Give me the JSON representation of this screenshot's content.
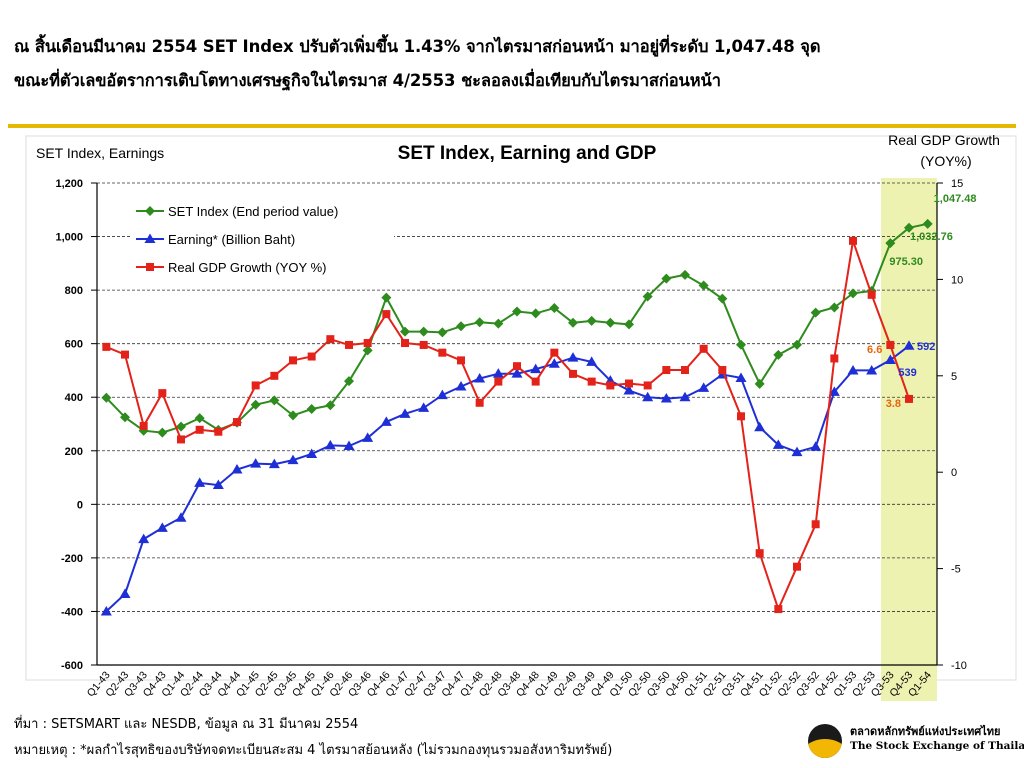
{
  "headline": {
    "line1": "ณ สิ้นเดือนมีนาคม 2554 SET Index ปรับตัวเพิ่มขึ้น 1.43% จากไตรมาสก่อนหน้า มาอยู่ที่ระดับ 1,047.48 จุด",
    "line2": "ขณะที่ตัวเลขอัตราการเติบโตทางเศรษฐกิจในไตรมาส 4/2553 ชะลอลงเมื่อเทียบกับไตรมาสก่อนหน้า"
  },
  "colors": {
    "set": "#2e8b1e",
    "earning": "#1f2fd6",
    "gdp": "#e32219",
    "highlight": "#eef2b0",
    "rule": "#e6b800"
  },
  "chart_data": {
    "type": "line",
    "title": "SET Index, Earning and GDP",
    "ylabel_left": "SET Index, Earnings",
    "ylabel_right": "Real GDP Growth (YOY%)",
    "ylim_left": [
      -600,
      1200
    ],
    "yticks_left": [
      "1,200",
      "1,000",
      "800",
      "600",
      "400",
      "200",
      "0",
      "-200",
      "-400",
      "-600"
    ],
    "ylim_right": [
      -10,
      15
    ],
    "yticks_right": [
      "15",
      "10",
      "5",
      "0",
      "-5",
      "-10"
    ],
    "grid": "horizontal dashed",
    "legend_position": "top-left",
    "categories": [
      "Q1-43",
      "Q2-43",
      "Q3-43",
      "Q4-43",
      "Q1-44",
      "Q2-44",
      "Q3-44",
      "Q4-44",
      "Q1-45",
      "Q2-45",
      "Q3-45",
      "Q4-45",
      "Q1-46",
      "Q2-46",
      "Q3-46",
      "Q4-46",
      "Q1-47",
      "Q2-47",
      "Q3-47",
      "Q4-47",
      "Q1-48",
      "Q2-48",
      "Q3-48",
      "Q4-48",
      "Q1-49",
      "Q2-49",
      "Q3-49",
      "Q4-49",
      "Q1-50",
      "Q2-50",
      "Q3-50",
      "Q4-50",
      "Q1-51",
      "Q2-51",
      "Q3-51",
      "Q4-51",
      "Q1-52",
      "Q2-52",
      "Q3-52",
      "Q4-52",
      "Q1-53",
      "Q2-53",
      "Q3-53",
      "Q4-53",
      "Q1-54"
    ],
    "series": [
      {
        "name": "SET Index (End period value)",
        "axis": "left",
        "marker": "diamond",
        "values": [
          398,
          325,
          275,
          268,
          290,
          322,
          278,
          305,
          372,
          388,
          332,
          356,
          370,
          460,
          575,
          772,
          645,
          645,
          642,
          665,
          680,
          675,
          720,
          713,
          733,
          678,
          685,
          678,
          672,
          776,
          843,
          857,
          817,
          768,
          596,
          450,
          558,
          596,
          716,
          735,
          788,
          797,
          975.3,
          1032.76,
          1047.48
        ]
      },
      {
        "name": "Earning* (Billion Baht)",
        "axis": "left",
        "marker": "triangle",
        "values": [
          -400,
          -335,
          -130,
          -88,
          -50,
          80,
          72,
          130,
          152,
          150,
          165,
          188,
          220,
          218,
          248,
          308,
          338,
          360,
          408,
          440,
          470,
          488,
          488,
          505,
          525,
          548,
          532,
          462,
          425,
          400,
          395,
          400,
          435,
          485,
          472,
          288,
          222,
          195,
          215,
          420,
          500,
          500,
          539,
          592,
          null
        ]
      },
      {
        "name": "Real GDP Growth (YOY %)",
        "axis": "right",
        "marker": "square",
        "values": [
          6.5,
          6.1,
          2.4,
          4.1,
          1.7,
          2.2,
          2.1,
          2.6,
          4.5,
          5.0,
          5.8,
          6.0,
          6.9,
          6.6,
          6.7,
          8.2,
          6.7,
          6.6,
          6.2,
          5.8,
          3.6,
          4.7,
          5.5,
          4.7,
          6.2,
          5.1,
          4.7,
          4.5,
          4.6,
          4.5,
          5.3,
          5.3,
          6.4,
          5.3,
          2.9,
          -4.2,
          -7.1,
          -4.9,
          -2.7,
          5.9,
          12.0,
          9.2,
          6.6,
          3.8,
          null
        ]
      }
    ],
    "data_labels": [
      {
        "series": "SET Index (End period value)",
        "category": "Q1-54",
        "text": "1,047.48"
      },
      {
        "series": "SET Index (End period value)",
        "category": "Q4-53",
        "text": "1,032.76"
      },
      {
        "series": "SET Index (End period value)",
        "category": "Q3-53",
        "text": "975.30"
      },
      {
        "series": "Earning* (Billion Baht)",
        "category": "Q4-53",
        "text": "592"
      },
      {
        "series": "Earning* (Billion Baht)",
        "category": "Q3-53",
        "text": "539"
      },
      {
        "series": "Real GDP Growth (YOY %)",
        "category": "Q3-53",
        "text": "6.6"
      },
      {
        "series": "Real GDP Growth (YOY %)",
        "category": "Q4-53",
        "text": "3.8"
      }
    ],
    "highlight_categories": [
      "Q3-53",
      "Q4-53",
      "Q1-54"
    ]
  },
  "footer": {
    "source": "ที่มา : SETSMART และ NESDB, ข้อมูล ณ 31 มีนาคม 2554",
    "note": "หมายเหตุ : *ผลกำไรสุทธิของบริษัทจดทะเบียนสะสม 4 ไตรมาสย้อนหลัง (ไม่รวมกองทุนรวมอสังหาริมทรัพย์)"
  },
  "logo": {
    "thai": "ตลาดหลักทรัพย์แห่งประเทศไทย",
    "english": "The Stock Exchange of Thailand"
  }
}
